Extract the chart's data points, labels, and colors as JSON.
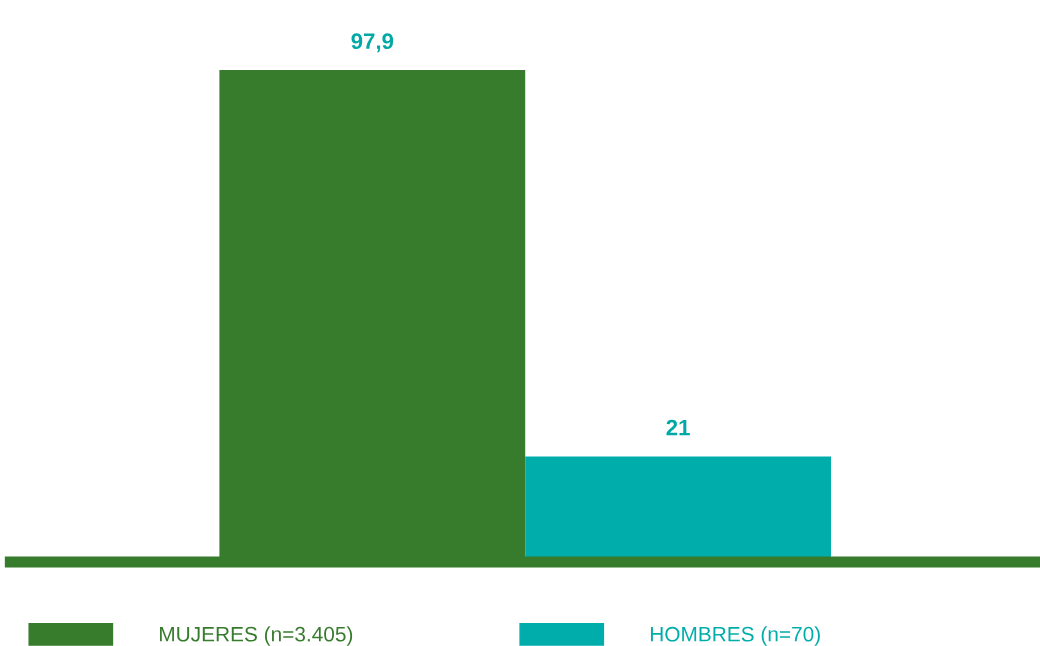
{
  "chart_data": {
    "type": "bar",
    "categories": [
      null
    ],
    "series": [
      {
        "name": "MUJERES (n=3.405)",
        "color": "#377b2d",
        "values": [
          97.9
        ],
        "value_labels": [
          "97,9"
        ]
      },
      {
        "name": "HOMBRES (n=70)",
        "color": "#00adaa",
        "values": [
          21
        ],
        "value_labels": [
          "21"
        ]
      }
    ],
    "legend": "bottom",
    "grid": false,
    "tick_labels": false
  }
}
